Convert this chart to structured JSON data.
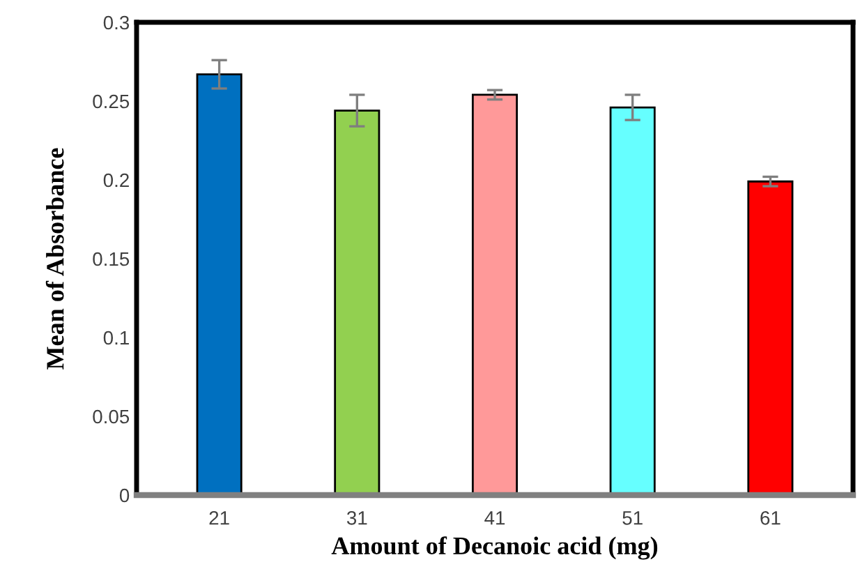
{
  "chart_data": {
    "type": "bar",
    "xlabel": "Amount of Decanoic acid (mg)",
    "ylabel": "Mean of Absorbance",
    "categories": [
      "21",
      "31",
      "41",
      "51",
      "61"
    ],
    "values": [
      0.267,
      0.244,
      0.254,
      0.246,
      0.199
    ],
    "errors": [
      0.009,
      0.01,
      0.003,
      0.008,
      0.003
    ],
    "colors": [
      "#0070c0",
      "#92d050",
      "#ff9999",
      "#66ffff",
      "#ff0000"
    ],
    "ylim": [
      0,
      0.3
    ],
    "yticks": [
      0,
      0.05,
      0.1,
      0.15,
      0.2,
      0.25,
      0.3
    ],
    "grid": false,
    "legend": false
  }
}
